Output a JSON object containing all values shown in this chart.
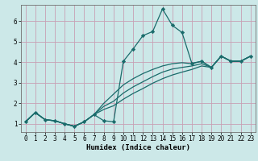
{
  "xlabel": "Humidex (Indice chaleur)",
  "bg_color": "#cce8e8",
  "grid_color": "#c8a0b4",
  "line_color": "#1a6b6b",
  "xlim": [
    -0.5,
    23.5
  ],
  "ylim": [
    0.6,
    6.8
  ],
  "xticks": [
    0,
    1,
    2,
    3,
    4,
    5,
    6,
    7,
    8,
    9,
    10,
    11,
    12,
    13,
    14,
    15,
    16,
    17,
    18,
    19,
    20,
    21,
    22,
    23
  ],
  "yticks": [
    1,
    2,
    3,
    4,
    5,
    6
  ],
  "lines": [
    {
      "x": [
        0,
        1,
        2,
        3,
        4,
        5,
        6,
        7,
        8,
        9,
        10,
        11,
        12,
        13,
        14,
        15,
        16,
        17,
        18,
        19,
        20,
        21,
        22,
        23
      ],
      "y": [
        1.1,
        1.55,
        1.2,
        1.15,
        1.0,
        0.88,
        1.1,
        1.45,
        1.15,
        1.1,
        4.05,
        4.65,
        5.3,
        5.5,
        6.6,
        5.8,
        5.45,
        3.95,
        4.05,
        3.75,
        4.3,
        4.05,
        4.05,
        4.3
      ],
      "marker": true
    },
    {
      "x": [
        0,
        1,
        2,
        3,
        4,
        5,
        6,
        7,
        8,
        9,
        10,
        11,
        12,
        13,
        14,
        15,
        16,
        17,
        18,
        19,
        20,
        21,
        22,
        23
      ],
      "y": [
        1.1,
        1.55,
        1.2,
        1.15,
        1.0,
        0.88,
        1.1,
        1.45,
        2.0,
        2.45,
        2.9,
        3.2,
        3.45,
        3.65,
        3.82,
        3.93,
        3.98,
        3.93,
        4.05,
        3.75,
        4.3,
        4.05,
        4.05,
        4.3
      ],
      "marker": false
    },
    {
      "x": [
        0,
        1,
        2,
        3,
        4,
        5,
        6,
        7,
        8,
        9,
        10,
        11,
        12,
        13,
        14,
        15,
        16,
        17,
        18,
        19,
        20,
        21,
        22,
        23
      ],
      "y": [
        1.1,
        1.55,
        1.2,
        1.15,
        1.0,
        0.88,
        1.1,
        1.45,
        1.85,
        2.1,
        2.5,
        2.8,
        3.05,
        3.3,
        3.52,
        3.67,
        3.75,
        3.82,
        3.93,
        3.75,
        4.3,
        4.05,
        4.05,
        4.3
      ],
      "marker": false
    },
    {
      "x": [
        0,
        1,
        2,
        3,
        4,
        5,
        6,
        7,
        8,
        9,
        10,
        11,
        12,
        13,
        14,
        15,
        16,
        17,
        18,
        19,
        20,
        21,
        22,
        23
      ],
      "y": [
        1.1,
        1.55,
        1.2,
        1.15,
        1.0,
        0.88,
        1.1,
        1.45,
        1.7,
        1.88,
        2.2,
        2.48,
        2.72,
        2.98,
        3.2,
        3.38,
        3.52,
        3.65,
        3.82,
        3.75,
        4.3,
        4.05,
        4.05,
        4.3
      ],
      "marker": false
    }
  ]
}
